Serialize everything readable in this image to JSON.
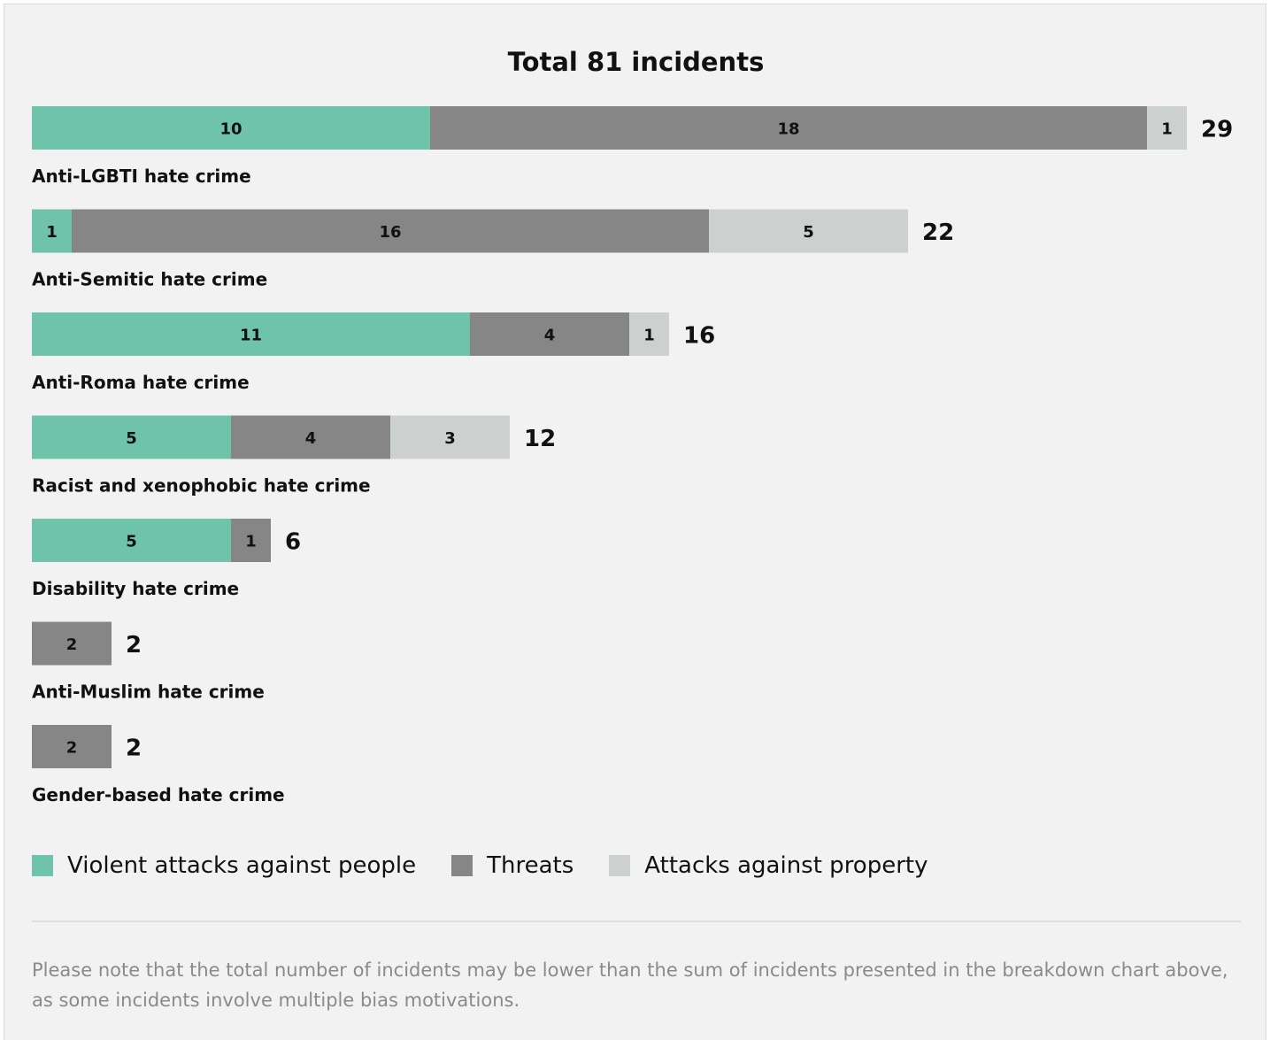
{
  "chart_data": {
    "type": "bar",
    "orientation": "horizontal",
    "stacked": true,
    "title": "Total 81 incidents",
    "categories": [
      "Anti-LGBTI hate crime",
      "Anti-Semitic hate crime",
      "Anti-Roma hate crime",
      "Racist and xenophobic hate crime",
      "Disability hate crime",
      "Anti-Muslim hate crime",
      "Gender-based hate crime"
    ],
    "series": [
      {
        "name": "Violent attacks against people",
        "color": "#6fc3ab",
        "values": [
          10,
          1,
          11,
          5,
          5,
          0,
          0
        ]
      },
      {
        "name": "Threats",
        "color": "#868686",
        "values": [
          18,
          16,
          4,
          4,
          1,
          2,
          2
        ]
      },
      {
        "name": "Attacks against property",
        "color": "#ccd0cf",
        "values": [
          1,
          5,
          1,
          3,
          0,
          0,
          0
        ]
      }
    ],
    "totals": [
      29,
      22,
      16,
      12,
      6,
      2,
      2
    ],
    "grid": false,
    "legend_position": "bottom-left"
  },
  "note": "Please note that the total number of incidents may be lower than the sum of incidents presented in the breakdown chart above, as some incidents involve multiple bias motivations."
}
